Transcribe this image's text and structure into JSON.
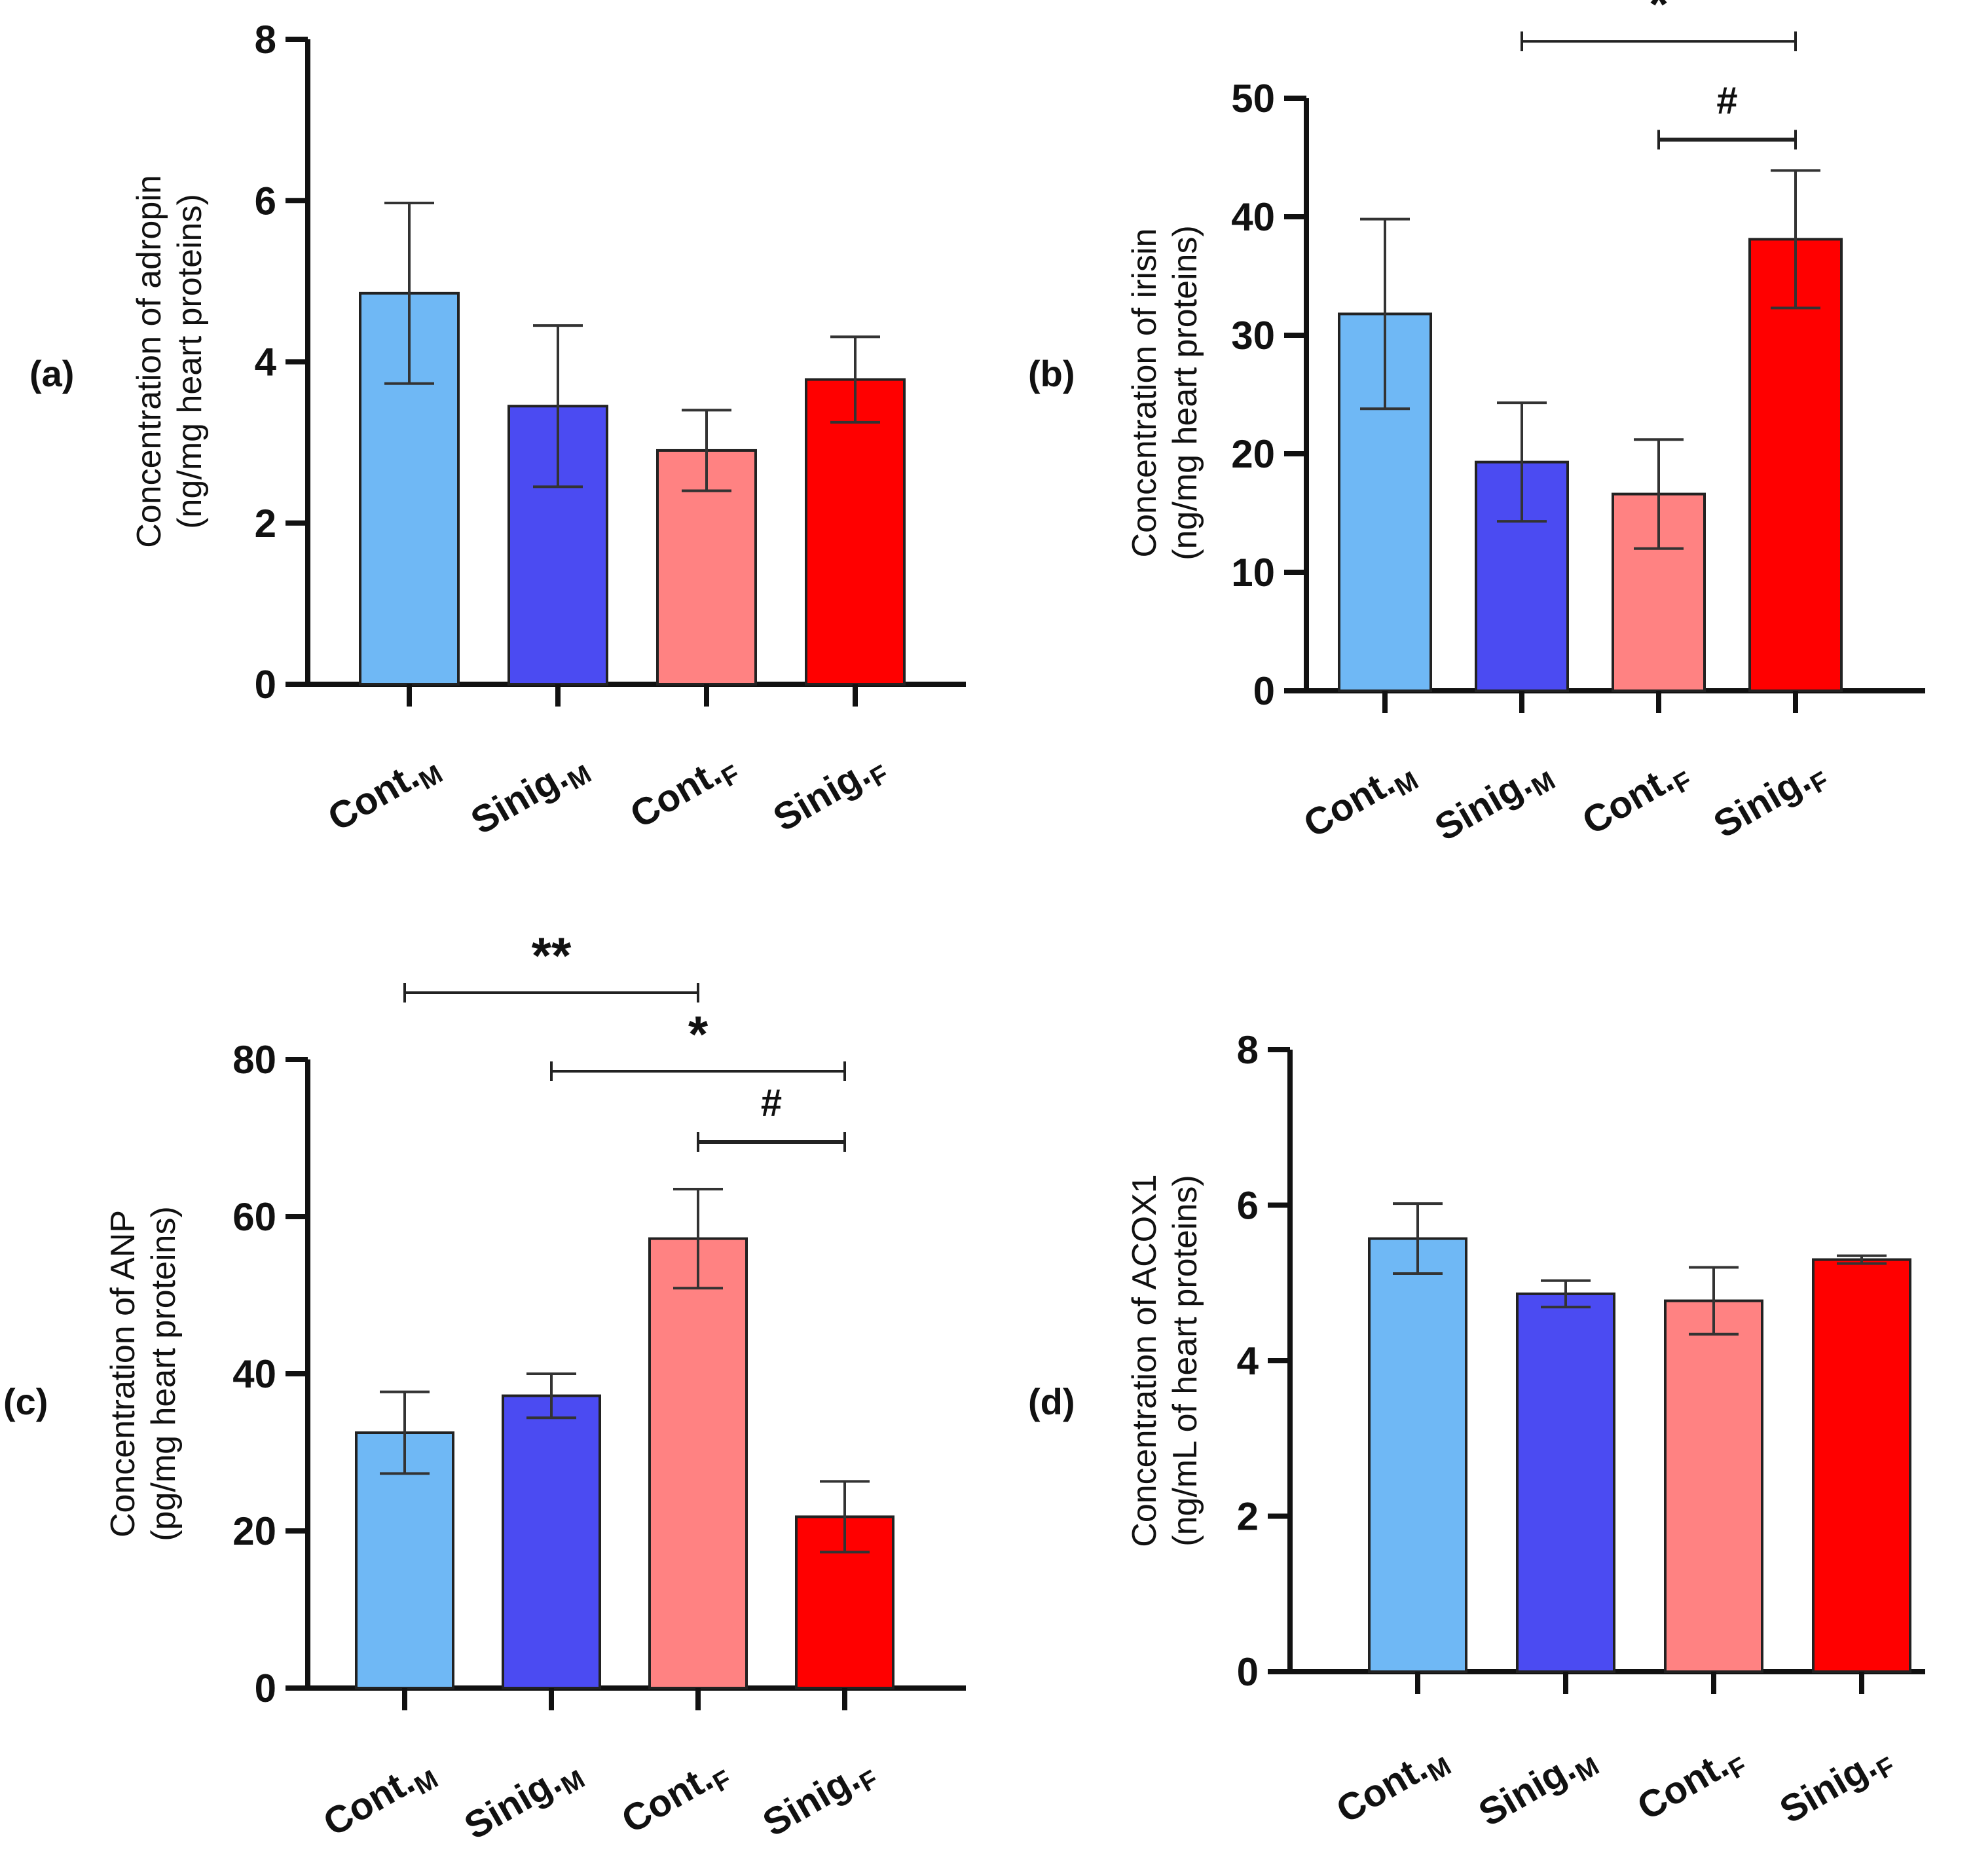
{
  "chart_data": [
    {
      "panel": "(a)",
      "type": "bar",
      "ylabel_line1": "Concentration of adropin",
      "ylabel_line2": "(ng/mg heart proteins)",
      "ylim": [
        0,
        8
      ],
      "yticks": [
        0,
        2,
        4,
        6,
        8
      ],
      "ytick_labels": [
        "0",
        "2",
        "4",
        "6",
        "8"
      ],
      "categories": [
        {
          "main": "Cont.",
          "sub": "M"
        },
        {
          "main": "Sinig.",
          "sub": "M"
        },
        {
          "main": "Cont.",
          "sub": "F"
        },
        {
          "main": "Sinig.",
          "sub": "F"
        }
      ],
      "values": [
        4.85,
        3.45,
        2.9,
        3.78
      ],
      "errors": [
        1.12,
        1.0,
        0.5,
        0.53
      ],
      "colors": [
        "#6FB8F5",
        "#4B4BF2",
        "#FF8282",
        "#FF0000"
      ],
      "significance": []
    },
    {
      "panel": "(b)",
      "type": "bar",
      "ylabel_line1": "Concentration of irisin",
      "ylabel_line2": "(ng/mg heart proteins)",
      "ylim": [
        0,
        50
      ],
      "yticks": [
        0,
        10,
        20,
        30,
        40,
        50
      ],
      "ytick_labels": [
        "0",
        "10",
        "20",
        "30",
        "40",
        "50"
      ],
      "categories": [
        {
          "main": "Cont.",
          "sub": "M"
        },
        {
          "main": "Sinig.",
          "sub": "M"
        },
        {
          "main": "Cont.",
          "sub": "F"
        },
        {
          "main": "Sinig.",
          "sub": "F"
        }
      ],
      "values": [
        31.8,
        19.3,
        16.6,
        38.1
      ],
      "errors": [
        8.0,
        5.0,
        4.6,
        5.8
      ],
      "colors": [
        "#6FB8F5",
        "#4B4BF2",
        "#FF8282",
        "#FF0000"
      ],
      "significance": [
        {
          "from": 1,
          "to": 3,
          "label": "*",
          "y": 54.8
        },
        {
          "from": 2,
          "to": 3,
          "label": "#",
          "y": 46.5
        }
      ]
    },
    {
      "panel": "(c)",
      "type": "bar",
      "ylabel_line1": "Concentration of ANP",
      "ylabel_line2": "(pg/mg heart proteins)",
      "ylim": [
        0,
        80
      ],
      "yticks": [
        0,
        20,
        40,
        60,
        80
      ],
      "ytick_labels": [
        "0",
        "20",
        "40",
        "60",
        "80"
      ],
      "categories": [
        {
          "main": "Cont.",
          "sub": "M"
        },
        {
          "main": "Sinig.",
          "sub": "M"
        },
        {
          "main": "Cont.",
          "sub": "F"
        },
        {
          "main": "Sinig.",
          "sub": "F"
        }
      ],
      "values": [
        32.5,
        37.2,
        57.2,
        21.8
      ],
      "errors": [
        5.2,
        2.8,
        6.3,
        4.5
      ],
      "colors": [
        "#6FB8F5",
        "#4B4BF2",
        "#FF8282",
        "#FF0000"
      ],
      "significance": [
        {
          "from": 0,
          "to": 2,
          "label": "**",
          "y": 88.5
        },
        {
          "from": 1,
          "to": 3,
          "label": "*",
          "y": 78.5
        },
        {
          "from": 2,
          "to": 3,
          "label": "#",
          "y": 69.5
        }
      ]
    },
    {
      "panel": "(d)",
      "type": "bar",
      "ylabel_line1": "Concentration of ACOX1",
      "ylabel_line2": "(ng/mL of heart proteins)",
      "ylim": [
        0,
        8
      ],
      "yticks": [
        0,
        2,
        4,
        6,
        8
      ],
      "ytick_labels": [
        "0",
        "2",
        "4",
        "6",
        "8"
      ],
      "categories": [
        {
          "main": "Cont.",
          "sub": "M"
        },
        {
          "main": "Sinig.",
          "sub": "M"
        },
        {
          "main": "Cont.",
          "sub": "F"
        },
        {
          "main": "Sinig.",
          "sub": "F"
        }
      ],
      "values": [
        5.57,
        4.86,
        4.77,
        5.3
      ],
      "errors": [
        0.45,
        0.17,
        0.43,
        0.05
      ],
      "colors": [
        "#6FB8F5",
        "#4B4BF2",
        "#FF8282",
        "#FF0000"
      ],
      "significance": []
    }
  ]
}
